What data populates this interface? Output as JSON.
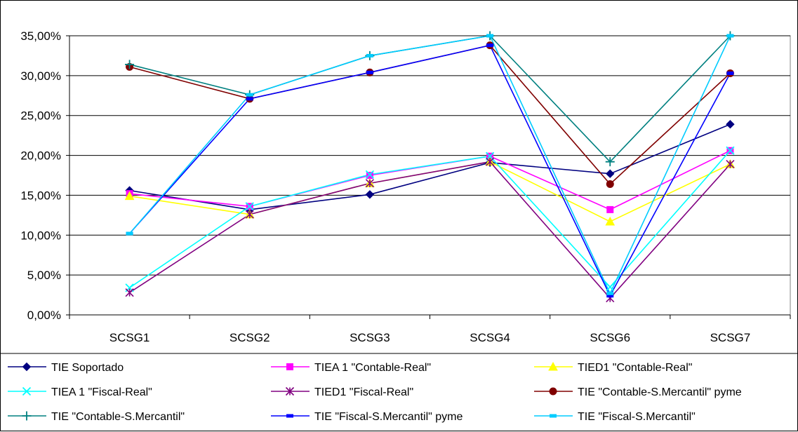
{
  "chart_data": {
    "type": "line",
    "title": "",
    "xlabel": "",
    "ylabel": "",
    "categories": [
      "SCSG1",
      "SCSG2",
      "SCSG3",
      "SCSG4",
      "SCSG6",
      "SCSG7"
    ],
    "ylim": [
      0,
      35
    ],
    "y_ticks": [
      0,
      5,
      10,
      15,
      20,
      25,
      30,
      35
    ],
    "y_tick_labels": [
      "0,00%",
      "5,00%",
      "10,00%",
      "15,00%",
      "20,00%",
      "25,00%",
      "30,00%",
      "35,00%"
    ],
    "grid": "horizontal",
    "legend_placement": "bottom",
    "series": [
      {
        "name": "TIE Soportado",
        "color": "#000080",
        "marker": "diamond",
        "values": [
          15.6,
          13.2,
          15.1,
          19.1,
          17.7,
          23.9
        ]
      },
      {
        "name": "TIEA 1 \"Contable-Real\"",
        "color": "#ff00ff",
        "marker": "square",
        "values": [
          15.2,
          13.6,
          17.5,
          19.9,
          13.2,
          20.6
        ]
      },
      {
        "name": "TIED1 \"Contable-Real\"",
        "color": "#ffff00",
        "marker": "triangle",
        "values": [
          14.9,
          12.6,
          16.5,
          19.2,
          11.7,
          18.9
        ]
      },
      {
        "name": "TIEA 1 \"Fiscal-Real\"",
        "color": "#00ffff",
        "marker": "x",
        "values": [
          3.4,
          13.6,
          17.6,
          19.9,
          3.5,
          20.6
        ]
      },
      {
        "name": "TIED1 \"Fiscal-Real\"",
        "color": "#800080",
        "marker": "asterisk",
        "values": [
          2.8,
          12.6,
          16.5,
          19.2,
          2.1,
          18.9
        ]
      },
      {
        "name": "TIE \"Contable-S.Mercantil\" pyme",
        "color": "#800000",
        "marker": "circle",
        "values": [
          31.1,
          27.1,
          30.4,
          33.8,
          16.4,
          30.3
        ]
      },
      {
        "name": "TIE \"Contable-S.Mercantil\"",
        "color": "#008080",
        "marker": "plus",
        "values": [
          31.4,
          27.6,
          32.5,
          35.0,
          19.2,
          35.0
        ]
      },
      {
        "name": "TIE \"Fiscal-S.Mercantil\" pyme",
        "color": "#0000ff",
        "marker": "dash",
        "values": [
          10.2,
          27.1,
          30.4,
          33.8,
          2.4,
          30.3
        ]
      },
      {
        "name": "TIE \"Fiscal-S.Mercantil\"",
        "color": "#00ccff",
        "marker": "dash",
        "values": [
          10.2,
          27.6,
          32.5,
          35.0,
          2.7,
          35.0
        ]
      }
    ]
  }
}
